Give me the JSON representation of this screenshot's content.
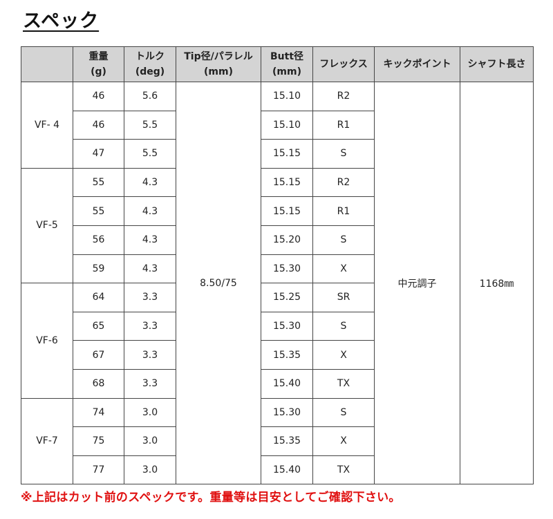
{
  "title": "スペック",
  "headers": [
    {
      "line1": "",
      "line2": ""
    },
    {
      "line1": "重量",
      "line2": "(g)"
    },
    {
      "line1": "トルク",
      "line2": "(deg)"
    },
    {
      "line1": "Tip径/パラレル",
      "line2": "(mm)"
    },
    {
      "line1": "Butt径",
      "line2": "(mm)"
    },
    {
      "line1": "フレックス",
      "line2": ""
    },
    {
      "line1": "キックポイント",
      "line2": ""
    },
    {
      "line1": "シャフト長さ",
      "line2": ""
    }
  ],
  "tip_parallel": "8.50/75",
  "kick_point": "中元調子",
  "shaft_length": "1168㎜",
  "models": [
    {
      "name": "VF- 4",
      "rows": [
        {
          "weight": "46",
          "torque": "5.6",
          "butt": "15.10",
          "flex": "R2"
        },
        {
          "weight": "46",
          "torque": "5.5",
          "butt": "15.10",
          "flex": "R1"
        },
        {
          "weight": "47",
          "torque": "5.5",
          "butt": "15.15",
          "flex": "S"
        }
      ]
    },
    {
      "name": "VF-5",
      "rows": [
        {
          "weight": "55",
          "torque": "4.3",
          "butt": "15.15",
          "flex": "R2"
        },
        {
          "weight": "55",
          "torque": "4.3",
          "butt": "15.15",
          "flex": "R1"
        },
        {
          "weight": "56",
          "torque": "4.3",
          "butt": "15.20",
          "flex": "S"
        },
        {
          "weight": "59",
          "torque": "4.3",
          "butt": "15.30",
          "flex": "X"
        }
      ]
    },
    {
      "name": "VF-6",
      "rows": [
        {
          "weight": "64",
          "torque": "3.3",
          "butt": "15.25",
          "flex": "SR"
        },
        {
          "weight": "65",
          "torque": "3.3",
          "butt": "15.30",
          "flex": "S"
        },
        {
          "weight": "67",
          "torque": "3.3",
          "butt": "15.35",
          "flex": "X"
        },
        {
          "weight": "68",
          "torque": "3.3",
          "butt": "15.40",
          "flex": "TX"
        }
      ]
    },
    {
      "name": "VF-7",
      "rows": [
        {
          "weight": "74",
          "torque": "3.0",
          "butt": "15.30",
          "flex": "S"
        },
        {
          "weight": "75",
          "torque": "3.0",
          "butt": "15.35",
          "flex": "X"
        },
        {
          "weight": "77",
          "torque": "3.0",
          "butt": "15.40",
          "flex": "TX"
        }
      ]
    }
  ],
  "note": "※上記はカット前のスペックです。重量等は目安としてご確認下さい。",
  "colors": {
    "header_bg": "#d4d4d4",
    "note": "#e01010"
  }
}
